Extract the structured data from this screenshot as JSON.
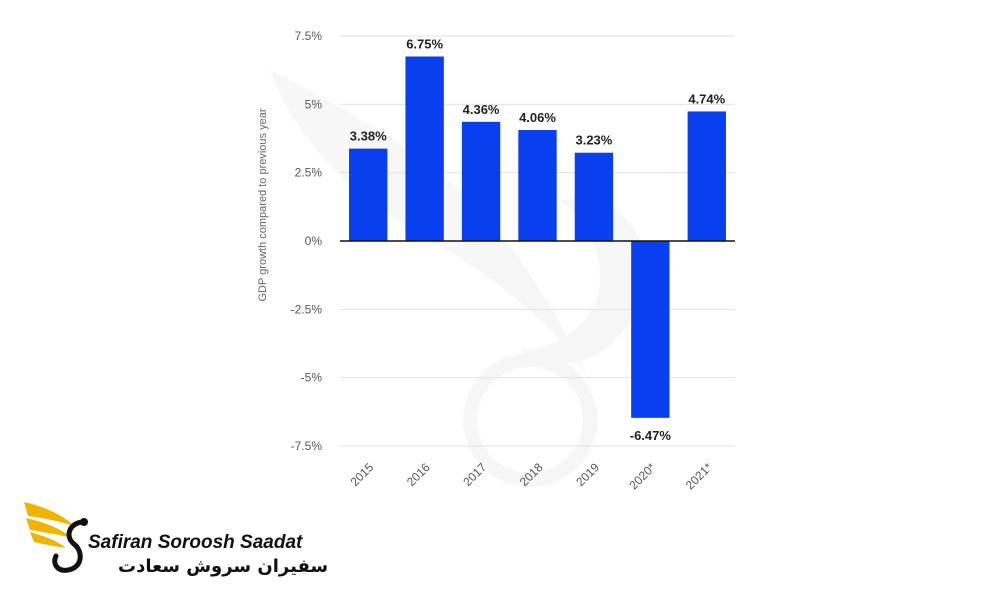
{
  "chart_data": {
    "type": "bar",
    "categories": [
      "2015",
      "2016",
      "2017",
      "2018",
      "2019",
      "2020*",
      "2021*"
    ],
    "values": [
      3.38,
      6.75,
      4.36,
      4.06,
      3.23,
      -6.47,
      4.74
    ],
    "value_labels": [
      "3.38%",
      "6.75%",
      "4.36%",
      "4.06%",
      "3.23%",
      "-6.47%",
      "4.74%"
    ],
    "ylabel": "GDP growth compared to previous year",
    "ylim": [
      -7.5,
      7.5
    ],
    "yticks": [
      7.5,
      5,
      2.5,
      0,
      -2.5,
      -5,
      -7.5
    ],
    "ytick_labels": [
      "7.5%",
      "5%",
      "2.5%",
      "0%",
      "-2.5%",
      "-5%",
      "-7.5%"
    ],
    "grid": true,
    "bar_color": "#0a3ff0"
  },
  "brand": {
    "name_en": "Safiran Soroosh Saadat",
    "name_fa": "سفیران سروش سعادت",
    "logo_icon": "wing-s-logo-icon",
    "gold_color": "#f0b400"
  }
}
